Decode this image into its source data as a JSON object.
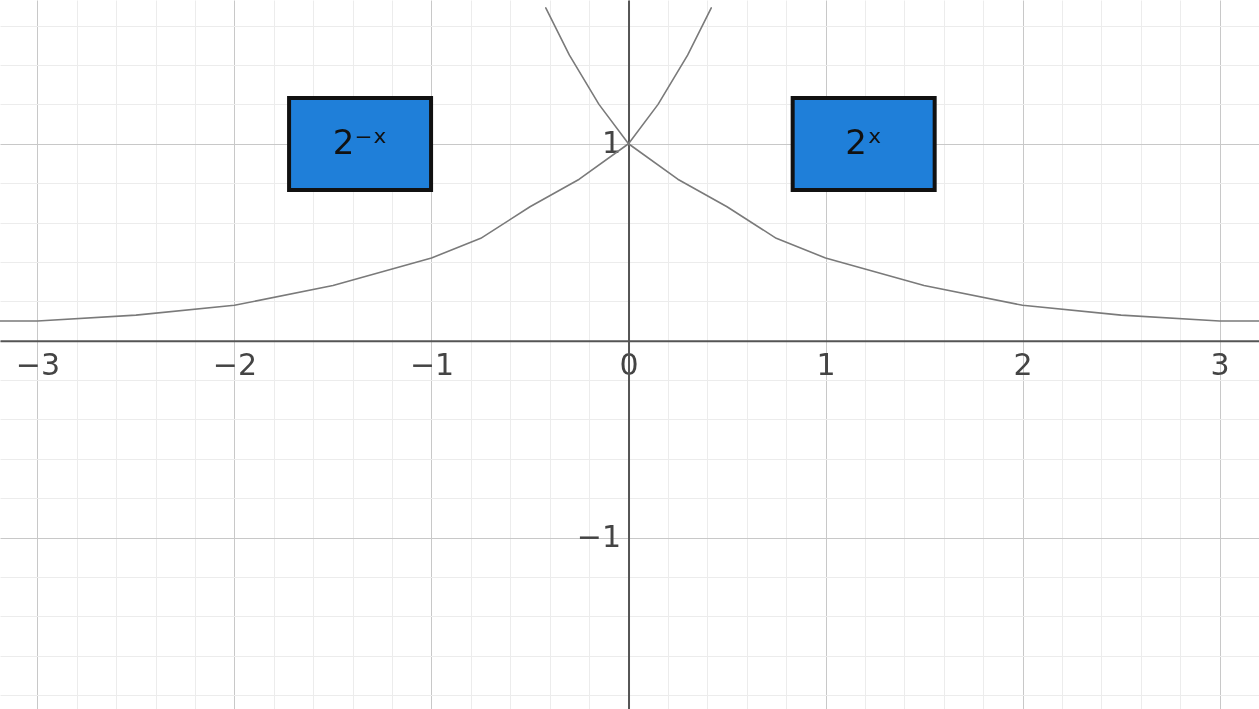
{
  "chart_data": {
    "type": "line",
    "xlim": [
      -3.19,
      3.2
    ],
    "ylim": [
      -1.87,
      1.73
    ],
    "xticks": [
      {
        "value": -3,
        "label": "−3"
      },
      {
        "value": -2.8,
        "label": null
      },
      {
        "value": -2.6,
        "label": null
      },
      {
        "value": -2.4,
        "label": null
      },
      {
        "value": -2.2,
        "label": null
      },
      {
        "value": -2,
        "label": "−2"
      },
      {
        "value": -1.8,
        "label": null
      },
      {
        "value": -1.6,
        "label": null
      },
      {
        "value": -1.4,
        "label": null
      },
      {
        "value": -1.2,
        "label": null
      },
      {
        "value": -1,
        "label": "−1"
      },
      {
        "value": -0.8,
        "label": null
      },
      {
        "value": -0.6,
        "label": null
      },
      {
        "value": -0.4,
        "label": null
      },
      {
        "value": -0.2,
        "label": null
      },
      0,
      {
        "value": 0.2,
        "label": null
      },
      {
        "value": 0.4,
        "label": null
      },
      {
        "value": 0.6,
        "label": null
      },
      {
        "value": 0.8,
        "label": null
      },
      1,
      {
        "value": 1.2,
        "label": null
      },
      {
        "value": 1.4,
        "label": null
      },
      {
        "value": 1.6,
        "label": null
      },
      {
        "value": 1.8,
        "label": null
      },
      2,
      {
        "value": 2.2,
        "label": null
      },
      {
        "value": 2.4,
        "label": null
      },
      {
        "value": 2.6,
        "label": null
      },
      {
        "value": 2.8,
        "label": null
      },
      3,
      {
        "value": 3.2,
        "label": null
      }
    ],
    "yticks": [
      {
        "value": -1.8,
        "label": null
      },
      {
        "value": -1.6,
        "label": null
      },
      {
        "value": -1.4,
        "label": null
      },
      {
        "value": -1.2,
        "label": null
      },
      {
        "value": -1,
        "label": "−1"
      },
      {
        "value": -0.8,
        "label": null
      },
      {
        "value": -0.6,
        "label": null
      },
      {
        "value": -0.4,
        "label": null
      },
      {
        "value": -0.2,
        "label": null
      },
      {
        "value": 0,
        "label": null
      },
      {
        "value": 0.2,
        "label": null
      },
      {
        "value": 0.4,
        "label": null
      },
      {
        "value": 0.6,
        "label": null
      },
      {
        "value": 0.8,
        "label": null
      },
      1,
      {
        "value": 1.2,
        "label": null
      },
      {
        "value": 1.4,
        "label": null
      },
      {
        "value": 1.6,
        "label": null
      }
    ],
    "grid": true,
    "marker": "none",
    "line_style": "solid",
    "series": [
      {
        "color": "#7a7a7a",
        "x": [
          -0.42,
          -0.3,
          -0.15,
          0,
          0.25,
          0.5,
          0.75,
          1,
          1.5,
          2,
          2.5,
          3,
          3.2
        ],
        "values": [
          1.69,
          1.45,
          1.2,
          1,
          0.82,
          0.68,
          0.52,
          0.42,
          0.28,
          0.18,
          0.13,
          0.1,
          0.1
        ]
      },
      {
        "color": "#7a7a7a",
        "x": [
          -3.19,
          -3,
          -2.5,
          -2,
          -1.5,
          -1,
          -0.75,
          -0.5,
          -0.25,
          0,
          0.15,
          0.3,
          0.42
        ],
        "values": [
          0.1,
          0.1,
          0.13,
          0.18,
          0.28,
          0.42,
          0.52,
          0.68,
          0.82,
          1,
          1.2,
          1.45,
          1.69
        ]
      }
    ],
    "annotations": [
      "2⁻ˣ",
      "2ˣ"
    ]
  }
}
